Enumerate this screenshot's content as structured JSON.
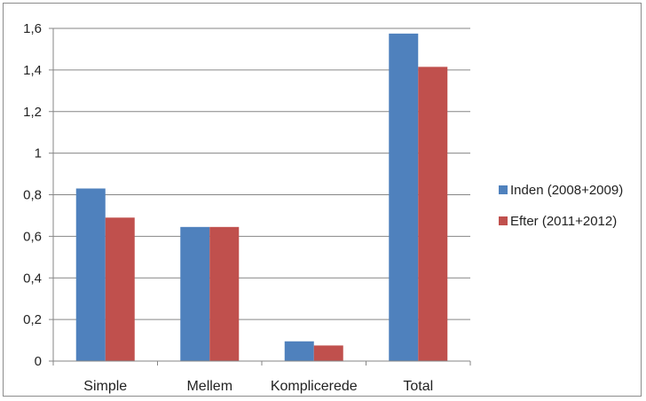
{
  "chart_data": {
    "type": "bar",
    "categories": [
      "Simple",
      "Mellem",
      "Komplicerede",
      "Total"
    ],
    "series": [
      {
        "name": "Inden (2008+2009)",
        "color": "#4f81bd",
        "values": [
          0.83,
          0.645,
          0.095,
          1.575
        ]
      },
      {
        "name": "Efter (2011+2012)",
        "color": "#c0504d",
        "values": [
          0.69,
          0.645,
          0.075,
          1.415
        ]
      }
    ],
    "y_ticks": [
      "0",
      "0,2",
      "0,4",
      "0,6",
      "0,8",
      "1",
      "1,2",
      "1,4",
      "1,6"
    ],
    "y_tick_values": [
      0,
      0.2,
      0.4,
      0.6,
      0.8,
      1.0,
      1.2,
      1.4,
      1.6
    ],
    "ylim": [
      0,
      1.6
    ],
    "grid": true,
    "legend_position": "right",
    "title": "",
    "xlabel": "",
    "ylabel": ""
  }
}
